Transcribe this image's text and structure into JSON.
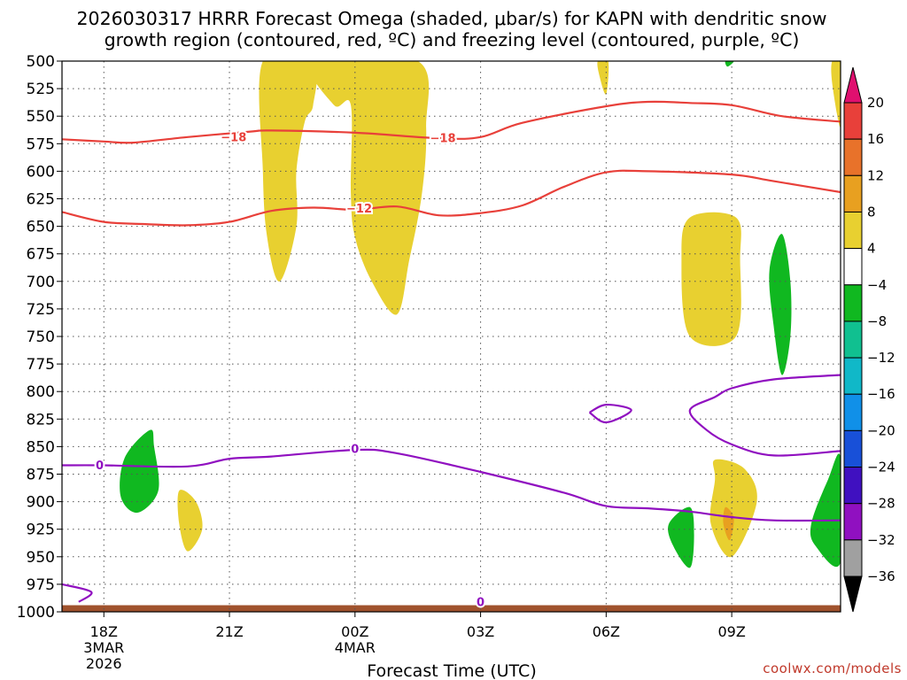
{
  "chart_data": {
    "type": "contour",
    "title_line1": "2026030317 HRRR Forecast Omega (shaded, μbar/s) for KAPN with dendritic snow",
    "title_line2": "growth region (contoured, red, ºC) and freezing level (contoured, purple, ºC)",
    "xlabel": "Forecast Time (UTC)",
    "credit": "coolwx.com/models",
    "x_range_hours": [
      -1.0,
      17.6
    ],
    "y_levels": [
      "500",
      "525",
      "550",
      "575",
      "600",
      "625",
      "650",
      "675",
      "700",
      "725",
      "750",
      "775",
      "800",
      "825",
      "850",
      "875",
      "900",
      "925",
      "950",
      "975",
      "1000"
    ],
    "ylim_hpa": [
      500,
      1000
    ],
    "x_ticks": [
      {
        "hour": 0,
        "label": "18Z",
        "sub1": "3MAR",
        "sub2": "2026"
      },
      {
        "hour": 3,
        "label": "21Z",
        "sub1": "",
        "sub2": ""
      },
      {
        "hour": 6,
        "label": "00Z",
        "sub1": "4MAR",
        "sub2": ""
      },
      {
        "hour": 9,
        "label": "03Z",
        "sub1": "",
        "sub2": ""
      },
      {
        "hour": 12,
        "label": "06Z",
        "sub1": "",
        "sub2": ""
      },
      {
        "hour": 15,
        "label": "09Z",
        "sub1": "",
        "sub2": ""
      }
    ],
    "colorbar": {
      "labels": [
        "20",
        "16",
        "12",
        "8",
        "4",
        "−4",
        "−8",
        "−12",
        "−16",
        "−20",
        "−24",
        "−28",
        "−32",
        "−36"
      ],
      "colors": [
        "#e0106f",
        "#e8403a",
        "#e8722a",
        "#e8a020",
        "#e8d030",
        "#ffffff",
        "#10b820",
        "#10c090",
        "#10b8c8",
        "#1090e8",
        "#1850d8",
        "#4010c0",
        "#9010c0",
        "#a0a0a0",
        "#000000"
      ]
    },
    "contours": [
      {
        "name": "isotherm-minus-18",
        "label": "−18",
        "color": "#e8403a",
        "points": [
          [
            -1.0,
            571
          ],
          [
            0.0,
            573
          ],
          [
            0.7,
            574
          ],
          [
            2.0,
            569
          ],
          [
            3.5,
            564
          ],
          [
            4.0,
            563
          ],
          [
            6.0,
            565
          ],
          [
            8.0,
            570
          ],
          [
            9.0,
            569
          ],
          [
            10.0,
            556
          ],
          [
            12.0,
            541
          ],
          [
            13.0,
            537
          ],
          [
            14.0,
            538
          ],
          [
            15.0,
            540
          ],
          [
            16.2,
            550
          ],
          [
            17.6,
            555
          ]
        ],
        "label_points": [
          [
            3.1,
            569
          ],
          [
            8.1,
            570
          ]
        ]
      },
      {
        "name": "isotherm-minus-12",
        "label": "−12",
        "color": "#e8403a",
        "points": [
          [
            -1.0,
            637
          ],
          [
            0.0,
            646
          ],
          [
            1.0,
            648
          ],
          [
            2.0,
            649
          ],
          [
            3.0,
            646
          ],
          [
            4.0,
            636
          ],
          [
            5.0,
            633
          ],
          [
            6.0,
            635
          ],
          [
            7.0,
            632
          ],
          [
            8.0,
            640
          ],
          [
            9.0,
            638
          ],
          [
            10.0,
            631
          ],
          [
            11.0,
            614
          ],
          [
            12.0,
            601
          ],
          [
            13.0,
            600
          ],
          [
            15.0,
            603
          ],
          [
            16.0,
            609
          ],
          [
            17.6,
            619
          ]
        ],
        "label_points": [
          [
            6.1,
            634
          ]
        ]
      },
      {
        "name": "freezing-level-0",
        "label": "0",
        "color": "#9010c0",
        "points": [
          [
            -1.0,
            867
          ],
          [
            0.0,
            867
          ],
          [
            2.0,
            868
          ],
          [
            3.0,
            861
          ],
          [
            4.0,
            859
          ],
          [
            6.0,
            853
          ],
          [
            7.0,
            856
          ],
          [
            9.0,
            873
          ],
          [
            11.0,
            892
          ],
          [
            12.0,
            904
          ],
          [
            13.0,
            906
          ],
          [
            14.0,
            909
          ],
          [
            15.0,
            914
          ],
          [
            16.0,
            917
          ],
          [
            17.6,
            917
          ]
        ],
        "label_points": [
          [
            -0.1,
            867
          ],
          [
            6.0,
            852
          ]
        ]
      },
      {
        "name": "freezing-level-0-upper",
        "label": "",
        "color": "#9010c0",
        "points": [
          [
            17.6,
            785
          ],
          [
            16.0,
            789
          ],
          [
            15.0,
            797
          ],
          [
            14.6,
            805
          ],
          [
            14.0,
            817
          ],
          [
            14.4,
            835
          ],
          [
            15.0,
            848
          ],
          [
            16.0,
            858
          ],
          [
            17.6,
            854
          ]
        ],
        "label_points": []
      },
      {
        "name": "freezing-level-0-loop",
        "label": "",
        "color": "#9010c0",
        "points": [
          [
            11.6,
            819
          ],
          [
            12.0,
            812
          ],
          [
            12.6,
            817
          ],
          [
            12.0,
            828
          ],
          [
            11.6,
            819
          ]
        ],
        "label_points": []
      },
      {
        "name": "freezing-level-0-near-surface",
        "label": "0",
        "color": "#9010c0",
        "points": [
          [
            -1.0,
            975
          ],
          [
            -0.3,
            982
          ],
          [
            -0.6,
            991
          ]
        ],
        "label_points": [
          [
            9.0,
            991
          ]
        ]
      }
    ],
    "omega_regions": [
      {
        "name": "omega-positive-4-8",
        "polarity": "rising",
        "color": "#e8d030",
        "polygon": [
          [
            3.8,
            500
          ],
          [
            5.0,
            500
          ],
          [
            5.0,
            540
          ],
          [
            4.8,
            555
          ],
          [
            4.6,
            600
          ],
          [
            4.6,
            650
          ],
          [
            4.2,
            700
          ],
          [
            3.9,
            660
          ],
          [
            3.8,
            600
          ]
        ]
      },
      {
        "name": "omega-positive-4-8",
        "polarity": "rising",
        "color": "#e8d030",
        "polygon": [
          [
            5.0,
            500
          ],
          [
            7.5,
            500
          ],
          [
            7.7,
            560
          ],
          [
            7.6,
            620
          ],
          [
            7.3,
            680
          ],
          [
            7.0,
            730
          ],
          [
            6.4,
            700
          ],
          [
            6.0,
            660
          ],
          [
            5.9,
            620
          ],
          [
            5.9,
            540
          ],
          [
            5.5,
            540
          ]
        ]
      },
      {
        "name": "omega-positive-4-8",
        "polarity": "rising",
        "color": "#e8d030",
        "polygon": [
          [
            11.8,
            500
          ],
          [
            12.05,
            500
          ],
          [
            12.0,
            530
          ],
          [
            11.85,
            515
          ]
        ]
      },
      {
        "name": "omega-positive-4-8",
        "polarity": "rising",
        "color": "#e8d030",
        "polygon": [
          [
            14.0,
            642
          ],
          [
            15.1,
            642
          ],
          [
            15.2,
            680
          ],
          [
            15.1,
            750
          ],
          [
            14.0,
            750
          ],
          [
            13.8,
            680
          ]
        ]
      },
      {
        "name": "omega-positive-4-8",
        "polarity": "rising",
        "color": "#e8d030",
        "polygon": [
          [
            14.6,
            862
          ],
          [
            15.3,
            870
          ],
          [
            15.6,
            900
          ],
          [
            15.0,
            950
          ],
          [
            14.5,
            920
          ],
          [
            14.6,
            880
          ]
        ]
      },
      {
        "name": "omega-positive-4-8",
        "polarity": "rising",
        "color": "#e8d030",
        "polygon": [
          [
            17.4,
            500
          ],
          [
            17.6,
            500
          ],
          [
            17.6,
            560
          ],
          [
            17.4,
            520
          ]
        ]
      },
      {
        "name": "omega-positive-4-8",
        "polarity": "rising",
        "color": "#e8d030",
        "polygon": [
          [
            1.8,
            890
          ],
          [
            2.2,
            900
          ],
          [
            2.35,
            925
          ],
          [
            2.0,
            945
          ],
          [
            1.8,
            920
          ]
        ]
      },
      {
        "name": "omega-positive-8-12",
        "polarity": "rising",
        "color": "#e8a020",
        "polygon": [
          [
            14.85,
            905
          ],
          [
            15.05,
            915
          ],
          [
            14.95,
            935
          ],
          [
            14.8,
            920
          ]
        ]
      },
      {
        "name": "omega-negative-4-8",
        "polarity": "sinking",
        "color": "#10b820",
        "polygon": [
          [
            1.1,
            835
          ],
          [
            1.2,
            850
          ],
          [
            1.3,
            890
          ],
          [
            0.8,
            910
          ],
          [
            0.4,
            895
          ],
          [
            0.5,
            860
          ]
        ]
      },
      {
        "name": "omega-negative-4-8",
        "polarity": "sinking",
        "color": "#10b820",
        "polygon": [
          [
            16.2,
            657
          ],
          [
            16.4,
            700
          ],
          [
            16.4,
            750
          ],
          [
            16.2,
            785
          ],
          [
            16.0,
            740
          ],
          [
            15.9,
            690
          ]
        ]
      },
      {
        "name": "omega-negative-4-8",
        "polarity": "sinking",
        "color": "#10b820",
        "polygon": [
          [
            14.0,
            905
          ],
          [
            14.1,
            930
          ],
          [
            14.0,
            960
          ],
          [
            13.6,
            940
          ],
          [
            13.5,
            920
          ]
        ]
      },
      {
        "name": "omega-negative-4-8",
        "polarity": "sinking",
        "color": "#10b820",
        "polygon": [
          [
            17.6,
            860
          ],
          [
            17.6,
            955
          ],
          [
            17.0,
            940
          ],
          [
            16.9,
            920
          ],
          [
            17.3,
            880
          ]
        ]
      },
      {
        "name": "omega-negative-4-8",
        "polarity": "sinking",
        "color": "#10b820",
        "polygon": [
          [
            14.85,
            500
          ],
          [
            15.05,
            500
          ],
          [
            14.9,
            505
          ]
        ]
      }
    ],
    "terrain": {
      "name": "ground-surface",
      "color": "#a0522d",
      "top_hpa": 994
    }
  }
}
